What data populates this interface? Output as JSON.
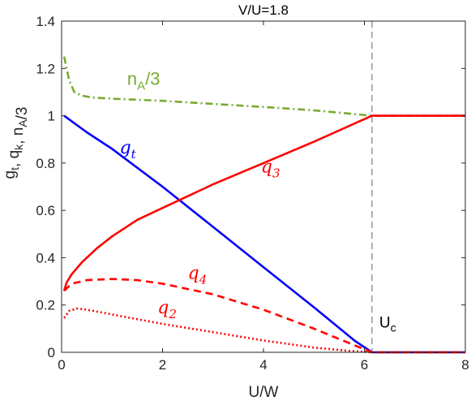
{
  "chart_data": {
    "type": "line",
    "title": "V/U=1.8",
    "xlabel": "U/W",
    "ylabel": "g_t, q_k, n_A/3",
    "xlim": [
      0,
      8
    ],
    "ylim": [
      0,
      1.4
    ],
    "xticks": [
      0,
      2,
      4,
      6,
      8
    ],
    "yticks": [
      0,
      0.2,
      0.4,
      0.6,
      0.8,
      1,
      1.2,
      1.4
    ],
    "grid": false,
    "legend": "none",
    "critical_line": {
      "x": 6.15,
      "label": "U",
      "label_sub": "c",
      "color": "#7f7f7f"
    },
    "series": [
      {
        "key": "nA",
        "color": "#77ac30",
        "dash": "9,4,2,4",
        "x": [
          0.05,
          0.1,
          0.15,
          0.25,
          0.4,
          0.6,
          1.0,
          2.0,
          3.0,
          4.0,
          5.0,
          6.15,
          8.0
        ],
        "y": [
          1.25,
          1.2,
          1.15,
          1.1,
          1.085,
          1.077,
          1.072,
          1.063,
          1.05,
          1.037,
          1.023,
          1.0,
          1.0
        ]
      },
      {
        "key": "gt",
        "color": "#0000ff",
        "dash": "",
        "x": [
          0.05,
          0.5,
          1.0,
          2.0,
          3.0,
          4.0,
          5.0,
          5.8,
          6.15,
          8.0
        ],
        "y": [
          1.0,
          0.93,
          0.86,
          0.7,
          0.53,
          0.36,
          0.19,
          0.05,
          0.0,
          0.0
        ]
      },
      {
        "key": "q3",
        "color": "#ff0000",
        "dash": "",
        "x": [
          0.05,
          0.1,
          0.2,
          0.4,
          0.7,
          1.0,
          1.5,
          2.0,
          2.5,
          3.0,
          4.0,
          5.0,
          6.15,
          8.0
        ],
        "y": [
          0.26,
          0.295,
          0.33,
          0.38,
          0.44,
          0.49,
          0.56,
          0.61,
          0.66,
          0.71,
          0.8,
          0.89,
          1.0,
          1.0
        ]
      },
      {
        "key": "q4",
        "color": "#ff0000",
        "dash": "9,6",
        "x": [
          0.05,
          0.2,
          0.5,
          1.0,
          1.5,
          2.0,
          3.0,
          4.0,
          5.0,
          5.8,
          6.15,
          8.0
        ],
        "y": [
          0.26,
          0.29,
          0.305,
          0.31,
          0.305,
          0.29,
          0.245,
          0.18,
          0.1,
          0.03,
          0.0,
          0.0
        ]
      },
      {
        "key": "q2",
        "color": "#ff0000",
        "dash": "2,3",
        "x": [
          0.05,
          0.15,
          0.3,
          0.5,
          1.0,
          1.5,
          2.0,
          3.0,
          4.0,
          5.0,
          5.8,
          6.15,
          8.0
        ],
        "y": [
          0.145,
          0.175,
          0.185,
          0.18,
          0.16,
          0.14,
          0.12,
          0.085,
          0.05,
          0.02,
          0.004,
          0.0,
          0.0
        ]
      }
    ],
    "annotations": [
      {
        "key": "nA",
        "base": "n",
        "sub": "A",
        "tail": "/3",
        "color": "#77ac30",
        "style": "sans",
        "x": 1.3,
        "y": 1.13
      },
      {
        "key": "gt",
        "base": "g",
        "sub": "t",
        "tail": "",
        "color": "#0000ff",
        "style": "italic",
        "x": 1.15,
        "y": 0.84
      },
      {
        "key": "q3",
        "base": "q",
        "sub": "3",
        "tail": "",
        "color": "#ff0000",
        "style": "italic",
        "x": 3.95,
        "y": 0.76
      },
      {
        "key": "q4",
        "base": "q",
        "sub": "4",
        "tail": "",
        "color": "#ff0000",
        "style": "italic",
        "x": 2.5,
        "y": 0.31
      },
      {
        "key": "q2",
        "base": "q",
        "sub": "2",
        "tail": "",
        "color": "#ff0000",
        "style": "italic",
        "x": 1.9,
        "y": 0.165
      }
    ]
  }
}
